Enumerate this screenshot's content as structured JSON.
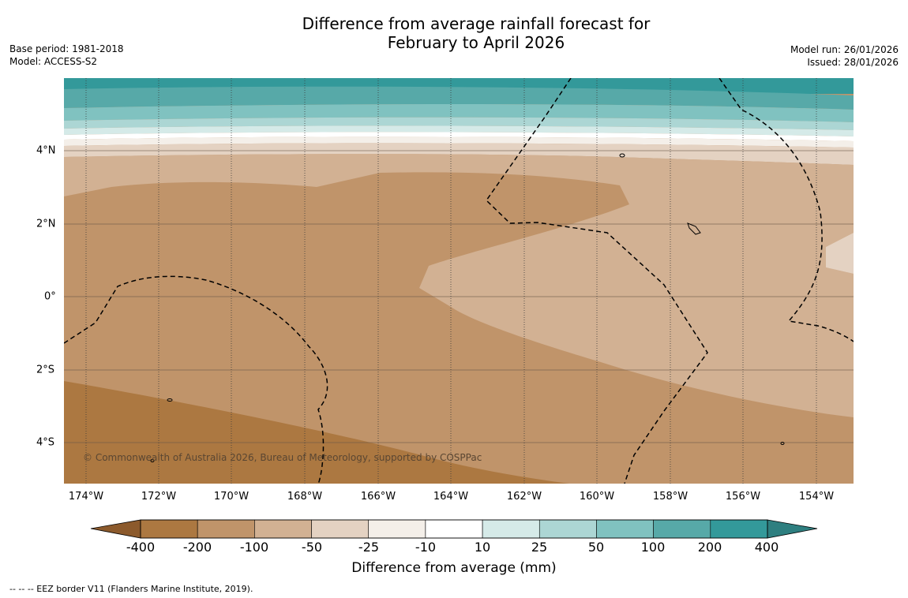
{
  "title": {
    "line1": "Difference from average rainfall forecast for",
    "line2": "February to April 2026"
  },
  "meta_left": {
    "base_period": "Base period: 1981-2018",
    "model": "Model: ACCESS-S2"
  },
  "meta_right": {
    "model_run": "Model run: 26/01/2026",
    "issued": "Issued: 28/01/2026"
  },
  "map": {
    "copyright": "© Commonwealth of Australia 2026, Bureau of Meteorology, supported by COSPPac",
    "lat_labels": [
      "4°N",
      "2°N",
      "0°",
      "2°S",
      "4°S"
    ],
    "lon_labels": [
      "174°W",
      "172°W",
      "170°W",
      "168°W",
      "166°W",
      "164°W",
      "162°W",
      "160°W",
      "158°W",
      "156°W",
      "154°W"
    ]
  },
  "colorbar": {
    "colors": [
      "#ac7841",
      "#c0946a",
      "#d2b193",
      "#e4d2c2",
      "#f4efe9",
      "#ffffff",
      "#d5eae8",
      "#acd6d4",
      "#80c2c0",
      "#57a9a8",
      "#33999a"
    ],
    "tick_labels": [
      "-400",
      "-200",
      "-100",
      "-50",
      "-25",
      "-10",
      "10",
      "25",
      "50",
      "100",
      "200",
      "400"
    ],
    "title": "Difference from average (mm)"
  },
  "footer": "--  --  -- EEZ border V11 (Flanders Marine Institute, 2019)."
}
